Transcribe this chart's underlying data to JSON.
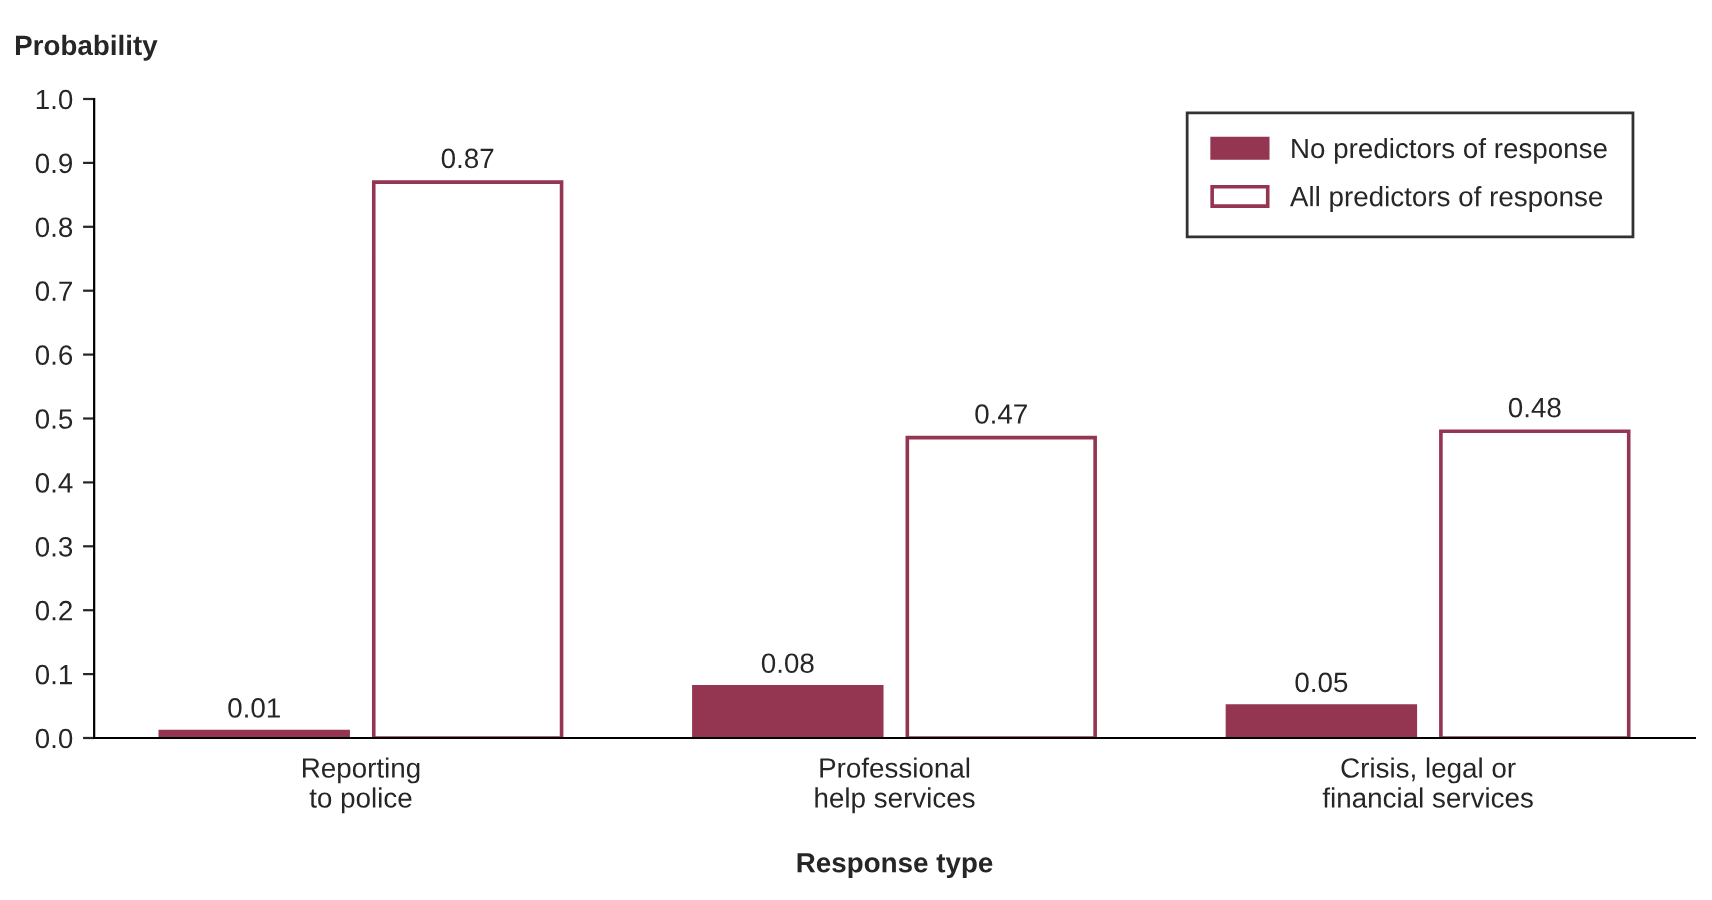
{
  "chart_data": {
    "type": "bar",
    "ylabel": "Probability",
    "xlabel": "Response type",
    "categories": [
      "Reporting\nto police",
      "Professional\nhelp services",
      "Crisis, legal or\nfinancial services"
    ],
    "series": [
      {
        "name": "No predictors of response",
        "color": "#943552",
        "values": [
          0.01,
          0.08,
          0.05
        ]
      },
      {
        "name": "All predictors of response",
        "color": "#ffffff",
        "values": [
          0.87,
          0.47,
          0.48
        ]
      }
    ],
    "ylim": [
      0,
      1.0
    ],
    "yticks": [
      {
        "value": 0,
        "label": "0.0"
      },
      {
        "value": 0.1,
        "label": "0.1"
      },
      {
        "value": 0.2,
        "label": "0.2"
      },
      {
        "value": 0.3,
        "label": "0.3"
      },
      {
        "value": 0.4,
        "label": "0.4"
      },
      {
        "value": 0.5,
        "label": "0.5"
      },
      {
        "value": 0.6,
        "label": "0.6"
      },
      {
        "value": 0.7,
        "label": "0.7"
      },
      {
        "value": 0.8,
        "label": "0.8"
      },
      {
        "value": 0.9,
        "label": "0.9"
      },
      {
        "value": 1.0,
        "label": "1.0"
      }
    ],
    "data_labels": true,
    "grid": false,
    "legend": "top right"
  }
}
